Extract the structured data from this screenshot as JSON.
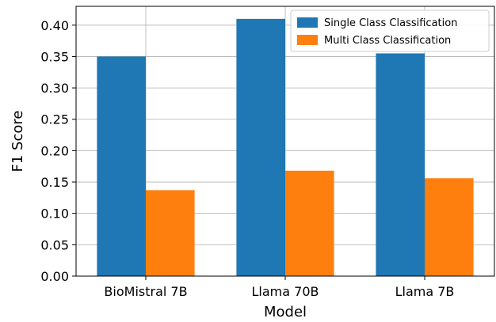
{
  "chart_data": {
    "type": "bar",
    "categories": [
      "BioMistral 7B",
      "Llama 70B",
      "Llama 7B"
    ],
    "series": [
      {
        "name": "Single Class Classification",
        "color": "#1f77b4",
        "values": [
          0.35,
          0.41,
          0.355
        ]
      },
      {
        "name": "Multi Class Classification",
        "color": "#ff7f0e",
        "values": [
          0.137,
          0.168,
          0.156
        ]
      }
    ],
    "xlabel": "Model",
    "ylabel": "F1 Score",
    "ylim": [
      0,
      0.43
    ],
    "yticks": [
      "0.00",
      "0.05",
      "0.10",
      "0.15",
      "0.20",
      "0.25",
      "0.30",
      "0.35",
      "0.40"
    ],
    "grid": true,
    "legend_position": "top-right"
  }
}
